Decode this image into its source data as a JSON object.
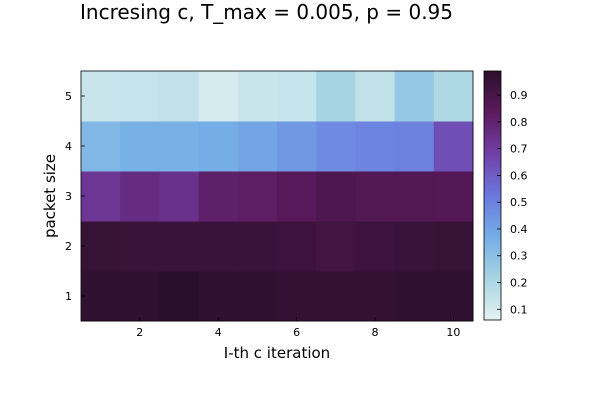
{
  "chart_data": {
    "type": "heatmap",
    "title": "Incresing c,  T_max = 0.005, p = 0.95",
    "xlabel": "I-th c iteration",
    "ylabel": "packet size",
    "x_values": [
      1,
      2,
      3,
      4,
      5,
      6,
      7,
      8,
      9,
      10
    ],
    "y_values": [
      1,
      2,
      3,
      4,
      5
    ],
    "x_ticks": [
      "2",
      "4",
      "6",
      "8",
      "10"
    ],
    "y_ticks": [
      "1",
      "2",
      "3",
      "4",
      "5"
    ],
    "z_rows_by_y": [
      [
        0.97,
        0.97,
        0.99,
        0.97,
        0.97,
        0.96,
        0.96,
        0.96,
        0.97,
        0.97
      ],
      [
        0.95,
        0.94,
        0.94,
        0.94,
        0.94,
        0.93,
        0.92,
        0.93,
        0.94,
        0.95
      ],
      [
        0.72,
        0.76,
        0.74,
        0.81,
        0.82,
        0.85,
        0.88,
        0.87,
        0.87,
        0.86
      ],
      [
        0.33,
        0.36,
        0.36,
        0.37,
        0.4,
        0.43,
        0.47,
        0.49,
        0.5,
        0.64
      ],
      [
        0.13,
        0.14,
        0.15,
        0.1,
        0.13,
        0.14,
        0.22,
        0.15,
        0.27,
        0.2
      ]
    ],
    "colorbar": {
      "ticks": [
        "0.1",
        "0.2",
        "0.3",
        "0.4",
        "0.5",
        "0.6",
        "0.7",
        "0.8",
        "0.9"
      ],
      "range": [
        0.06,
        0.99
      ]
    },
    "colorscale_stops": [
      "#e4f2f1",
      "#a8d5e3",
      "#75aee6",
      "#6b78de",
      "#7140a8",
      "#5c1a5e",
      "#2a0f2a"
    ],
    "grid": false,
    "legend": "colorbar-right"
  }
}
